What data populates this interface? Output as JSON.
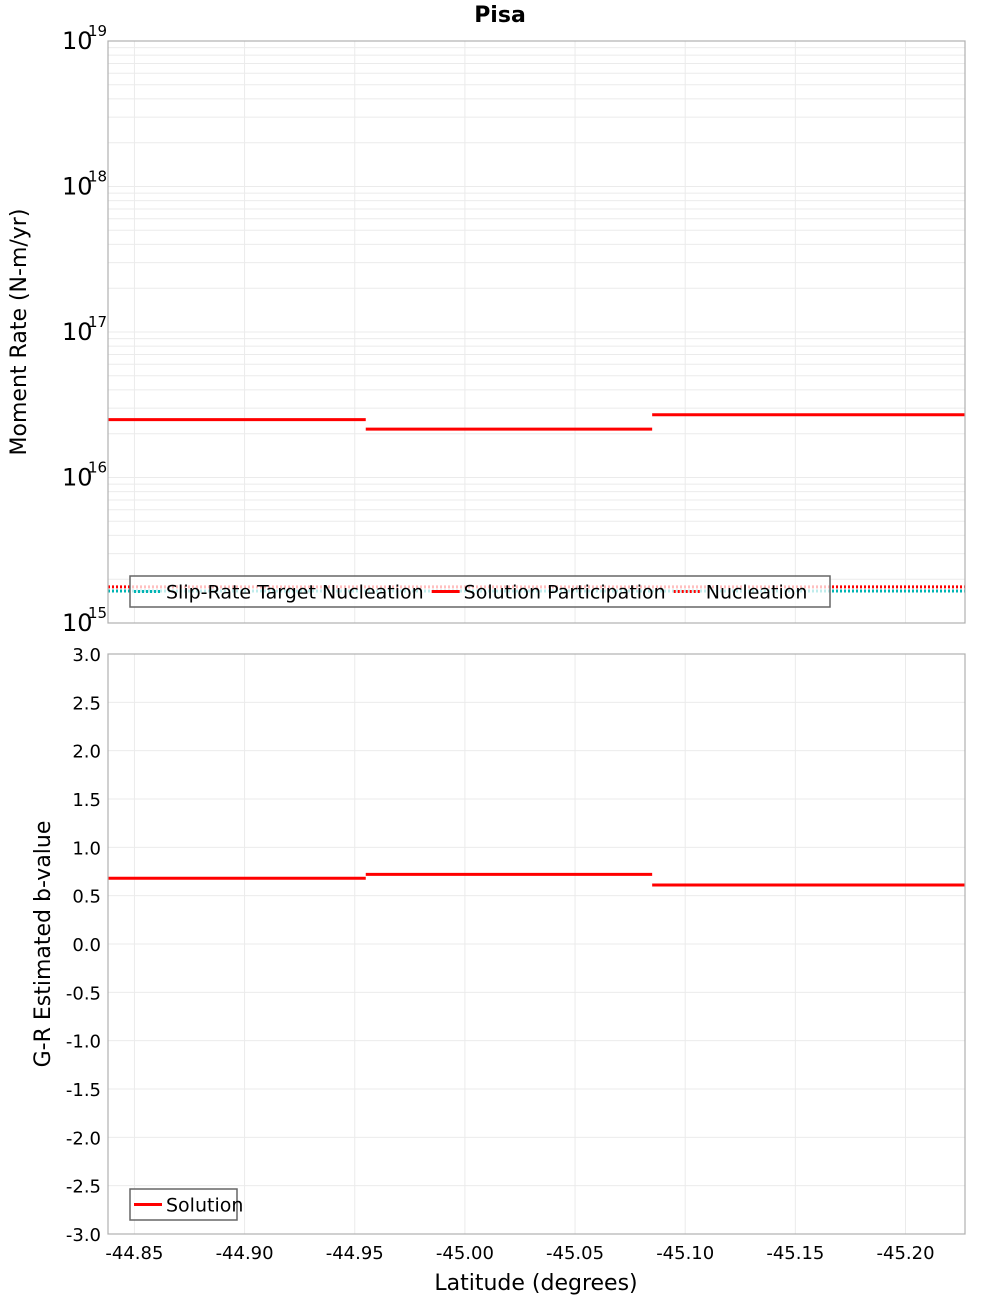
{
  "title": "Pisa",
  "x_axis": {
    "label": "Latitude (degrees)",
    "ticks": [
      "-44.85",
      "-44.90",
      "-44.95",
      "-45.00",
      "-45.05",
      "-45.10",
      "-45.15",
      "-45.20"
    ],
    "tick_values": [
      -44.85,
      -44.9,
      -44.95,
      -45.0,
      -45.05,
      -45.1,
      -45.15,
      -45.2
    ],
    "range": [
      -44.838,
      -45.227
    ]
  },
  "top_panel": {
    "ylabel": "Moment Rate (N-m/yr)",
    "yscale": "log",
    "ylim": [
      1000000000000000.0,
      1e+19
    ],
    "tick_base": "10",
    "tick_exponents": [
      "19",
      "18",
      "17",
      "16",
      "15"
    ],
    "legend": [
      {
        "label": "Slip-Rate Target Nucleation",
        "color": "#00b4b4",
        "style": "dotted"
      },
      {
        "label": "Solution Participation",
        "color": "#ff0000",
        "style": "solid"
      },
      {
        "label": "Nucleation",
        "color": "#ff0000",
        "style": "dotted"
      }
    ]
  },
  "bottom_panel": {
    "ylabel": "G-R Estimated b-value",
    "ylim": [
      -3.0,
      3.0
    ],
    "ticks": [
      "3.0",
      "2.5",
      "2.0",
      "1.5",
      "1.0",
      "0.5",
      "0.0",
      "-0.5",
      "-1.0",
      "-1.5",
      "-2.0",
      "-2.5",
      "-3.0"
    ],
    "legend": [
      {
        "label": "Solution",
        "color": "#ff0000",
        "style": "solid"
      }
    ]
  },
  "chart_data": [
    {
      "type": "line",
      "title": "Pisa",
      "xlabel": "Latitude (degrees)",
      "ylabel": "Moment Rate (N-m/yr)",
      "yscale": "log",
      "ylim": [
        1000000000000000.0,
        1e+19
      ],
      "xlim": [
        -44.838,
        -45.227
      ],
      "grid": true,
      "legend_position": "bottom-inside",
      "series": [
        {
          "name": "Slip-Rate Target Nucleation",
          "color": "#00b4b4",
          "style": "dotted",
          "segments": [
            {
              "x0": -44.838,
              "x1": -45.227,
              "y": 1660000000000000.0
            }
          ]
        },
        {
          "name": "Solution Participation",
          "color": "#ff0000",
          "style": "solid",
          "segments": [
            {
              "x0": -44.838,
              "x1": -44.955,
              "y": 2.5e+16
            },
            {
              "x0": -44.955,
              "x1": -45.085,
              "y": 2.15e+16
            },
            {
              "x0": -45.085,
              "x1": -45.227,
              "y": 2.7e+16
            }
          ]
        },
        {
          "name": "Nucleation",
          "color": "#ff0000",
          "style": "dotted",
          "segments": [
            {
              "x0": -44.838,
              "x1": -45.227,
              "y": 1770000000000000.0
            }
          ]
        }
      ]
    },
    {
      "type": "line",
      "title": "",
      "xlabel": "Latitude (degrees)",
      "ylabel": "G-R Estimated b-value",
      "ylim": [
        -3.0,
        3.0
      ],
      "xlim": [
        -44.838,
        -45.227
      ],
      "grid": true,
      "legend_position": "bottom-left-inside",
      "series": [
        {
          "name": "Solution",
          "color": "#ff0000",
          "style": "solid",
          "segments": [
            {
              "x0": -44.838,
              "x1": -44.955,
              "y": 0.68
            },
            {
              "x0": -44.955,
              "x1": -45.085,
              "y": 0.72
            },
            {
              "x0": -45.085,
              "x1": -45.227,
              "y": 0.61
            }
          ]
        }
      ]
    }
  ]
}
